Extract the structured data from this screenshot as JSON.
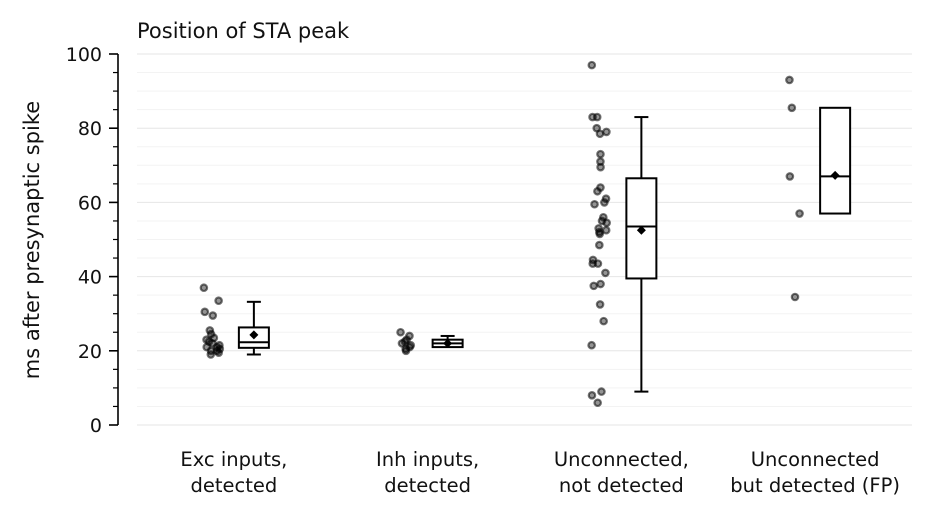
{
  "chart_data": {
    "type": "box",
    "title": "Position of STA peak",
    "xlabel": "",
    "ylabel": "ms after presynaptic spike",
    "ylim": [
      0,
      100
    ],
    "yticks": [
      0,
      20,
      40,
      60,
      80,
      100
    ],
    "yticks_minor_step": 5,
    "grid": true,
    "categories": [
      [
        "Exc inputs,",
        "detected"
      ],
      [
        "Inh inputs,",
        "detected"
      ],
      [
        "Unconnected,",
        "not detected"
      ],
      [
        "Unconnected",
        "but detected (FP)"
      ]
    ],
    "groups": [
      {
        "points": [
          37,
          33.5,
          30.5,
          29.5,
          25.5,
          24.5,
          23.5,
          23,
          22.5,
          22,
          21.5,
          21,
          21,
          20.5,
          20,
          20,
          19.5,
          19
        ],
        "box": {
          "q1": 20.8,
          "median": 22.3,
          "q3": 26.3,
          "whisker_low": 19,
          "whisker_high": 33.2,
          "mean": 24.3
        }
      },
      {
        "points": [
          25,
          24,
          23,
          22.5,
          22,
          21.5,
          21,
          20.5,
          20
        ],
        "box": {
          "q1": 21,
          "median": 22,
          "q3": 23,
          "whisker_low": 21,
          "whisker_high": 24,
          "mean": 22
        }
      },
      {
        "points": [
          97,
          83,
          83,
          80,
          79,
          78.5,
          73,
          71,
          69.5,
          64,
          63,
          61,
          60,
          59.5,
          56,
          55,
          54.5,
          53,
          52.5,
          52,
          51.5,
          48.5,
          44.5,
          43.5,
          43.5,
          41,
          38,
          37.5,
          32.5,
          28,
          21.5,
          9,
          8,
          6
        ],
        "box": {
          "q1": 39.5,
          "median": 53.5,
          "q3": 66.5,
          "whisker_low": 9,
          "whisker_high": 83,
          "mean": 52.5
        }
      },
      {
        "points": [
          93,
          85.5,
          67,
          57,
          34.5
        ],
        "box": {
          "q1": 57,
          "median": 67,
          "q3": 85.5,
          "whisker_low": 57,
          "whisker_high": 85.5,
          "mean": 67.3
        }
      }
    ]
  }
}
